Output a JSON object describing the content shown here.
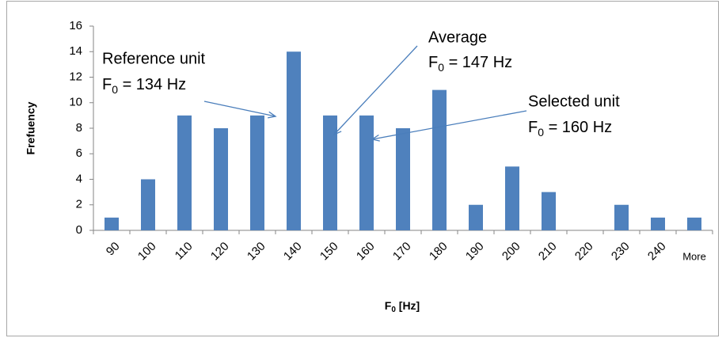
{
  "chart_data": {
    "type": "bar",
    "categories": [
      "90",
      "100",
      "110",
      "120",
      "130",
      "140",
      "150",
      "160",
      "170",
      "180",
      "190",
      "200",
      "210",
      "220",
      "230",
      "240",
      "More"
    ],
    "values": [
      1,
      4,
      9,
      8,
      9,
      14,
      9,
      9,
      8,
      11,
      2,
      5,
      3,
      0,
      2,
      1,
      1
    ],
    "color": "#4f81bd",
    "ylim": [
      0,
      16
    ],
    "yticks": [
      0,
      2,
      4,
      6,
      8,
      10,
      12,
      14,
      16
    ],
    "y_label": "Frefuency",
    "x_label": {
      "symbol": "F",
      "subscript": "0",
      "rest": " [Hz]"
    },
    "annotations": [
      {
        "text": "Reference unit",
        "symbol": "F",
        "subscript": "0",
        "rest": " = 134 Hz"
      },
      {
        "text": "Average",
        "symbol": "F",
        "subscript": "0",
        "rest": " = 147 Hz"
      },
      {
        "text": "Selected unit",
        "symbol": "F",
        "subscript": "0",
        "rest": " = 160 Hz"
      }
    ]
  }
}
